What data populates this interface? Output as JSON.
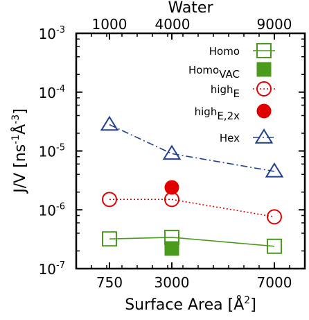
{
  "chart_data": {
    "type": "line",
    "xlabel": "Surface Area [Å",
    "xlabel_sup": "2",
    "xlabel_end": "]",
    "ylabel_main": "J/V [ns",
    "ylabel_sup1": "-1",
    "ylabel_mid": "Å",
    "ylabel_sup2": "-3",
    "ylabel_end": "]",
    "top_axis_label": "Water",
    "x_categories": [
      "750",
      "3000",
      "7000"
    ],
    "top_ticks": [
      "1000",
      "4000",
      "9000"
    ],
    "y_scale": "log",
    "ylim": [
      1e-07,
      0.001
    ],
    "y_ticks": [
      {
        "value": 1e-07,
        "base": "10",
        "exp": "-7"
      },
      {
        "value": 1e-06,
        "base": "10",
        "exp": "-6"
      },
      {
        "value": 1e-05,
        "base": "10",
        "exp": "-5"
      },
      {
        "value": 0.0001,
        "base": "10",
        "exp": "-4"
      },
      {
        "value": 0.001,
        "base": "10",
        "exp": "-3"
      }
    ],
    "legend_position": "top-right",
    "series": [
      {
        "name": "Homo",
        "name_sub": "",
        "color": "#4a9a1c",
        "marker": "square-open",
        "line": "solid",
        "points": [
          {
            "x": "750",
            "y": 3.2e-07
          },
          {
            "x": "3000",
            "y": 3.4e-07
          },
          {
            "x": "7000",
            "y": 2.4e-07
          }
        ]
      },
      {
        "name": "Homo",
        "name_sub": "VAC",
        "color": "#4a9a1c",
        "marker": "square-filled",
        "line": "none",
        "points": [
          {
            "x": "3000",
            "y": 2.2e-07
          }
        ]
      },
      {
        "name": "high",
        "name_sub": "E",
        "color": "#e00000",
        "marker": "circle-open",
        "line": "dotted",
        "points": [
          {
            "x": "750",
            "y": 1.5e-06
          },
          {
            "x": "3000",
            "y": 1.5e-06
          },
          {
            "x": "7000",
            "y": 7.6e-07
          }
        ]
      },
      {
        "name": "high",
        "name_sub": "E,2x",
        "color": "#e00000",
        "marker": "circle-filled",
        "line": "none",
        "points": [
          {
            "x": "3000",
            "y": 2.4e-06
          }
        ]
      },
      {
        "name": "Hex",
        "name_sub": "",
        "color": "#1f3f8f",
        "marker": "triangle-open",
        "line": "dashdot",
        "points": [
          {
            "x": "750",
            "y": 2.8e-05
          },
          {
            "x": "3000",
            "y": 9e-06
          },
          {
            "x": "7000",
            "y": 4.5e-06
          }
        ]
      }
    ]
  }
}
